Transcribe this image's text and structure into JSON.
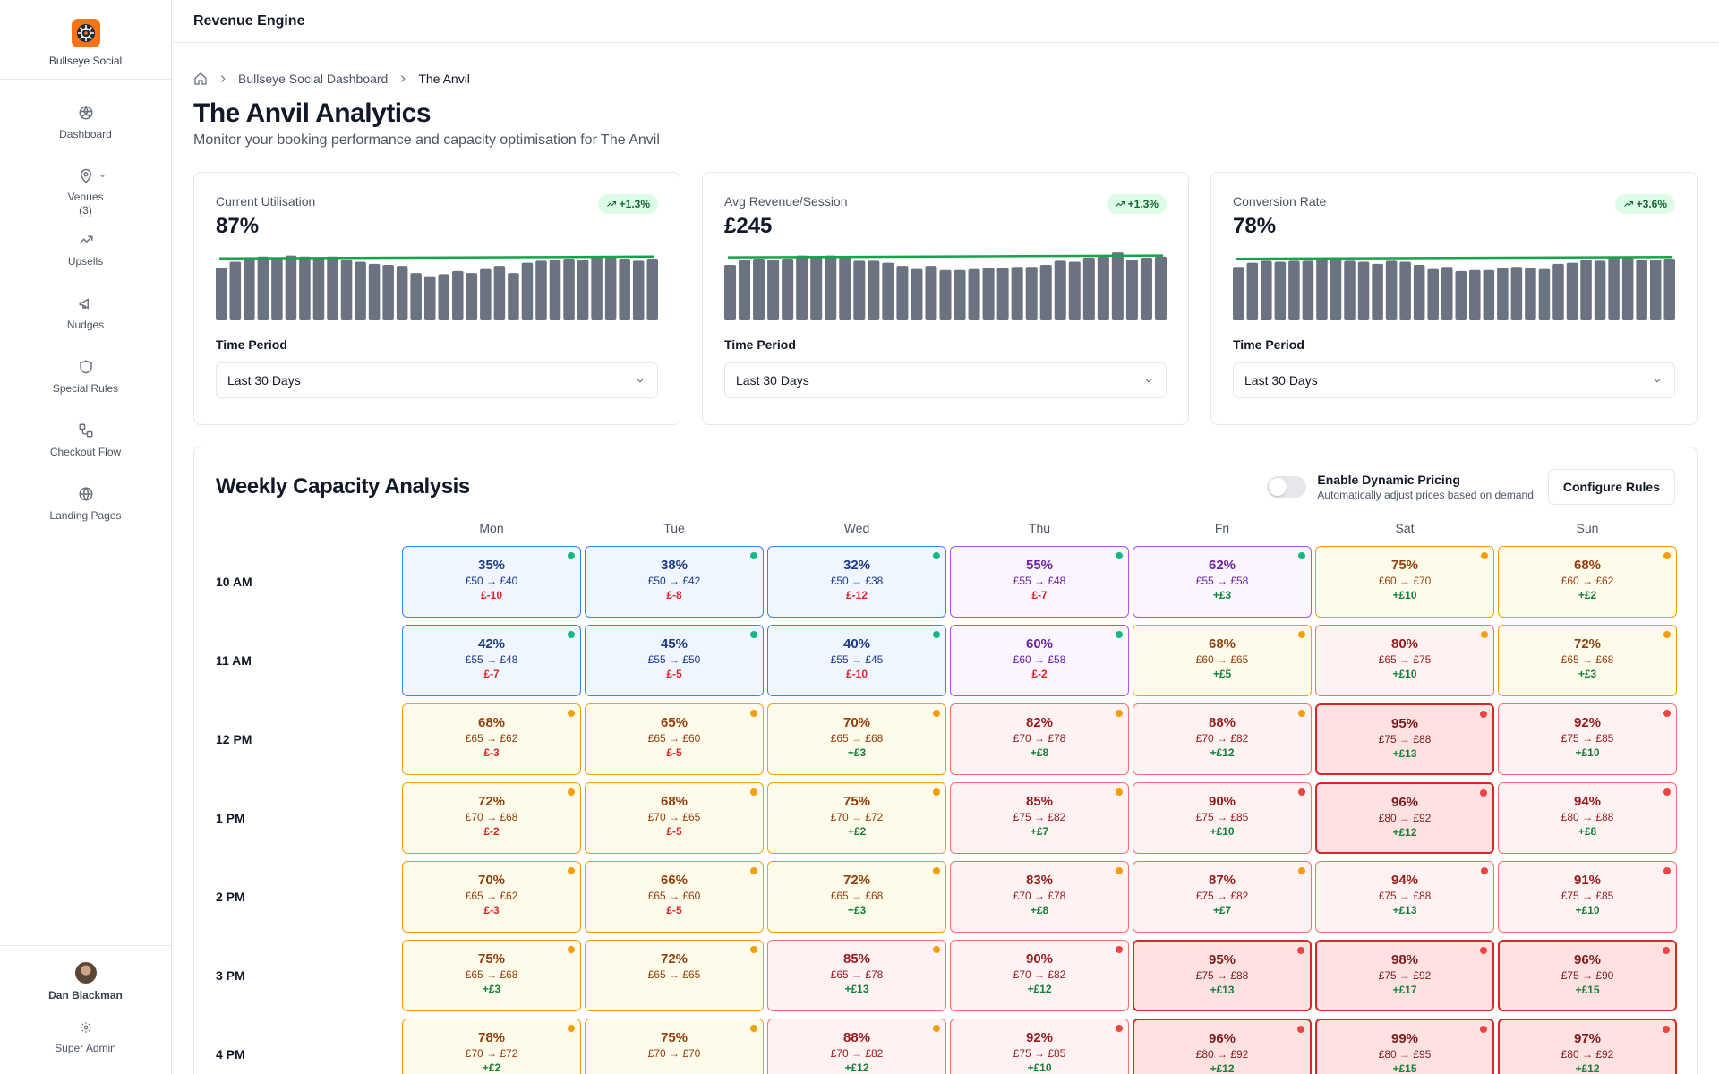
{
  "brand": {
    "name": "Bullseye Social",
    "logo_color": "#f97316"
  },
  "sidebar": {
    "items": [
      {
        "label": "Dashboard",
        "icon": "dashboard-icon"
      },
      {
        "label": "Venues",
        "sub": "(3)",
        "icon": "map-pin-icon"
      },
      {
        "label": "Upsells",
        "icon": "trending-up-icon"
      },
      {
        "label": "Nudges",
        "icon": "megaphone-icon"
      },
      {
        "label": "Special Rules",
        "icon": "shield-icon"
      },
      {
        "label": "Checkout Flow",
        "icon": "workflow-icon"
      },
      {
        "label": "Landing Pages",
        "icon": "globe-icon"
      }
    ],
    "user": {
      "name": "Dan Blackman",
      "role": "Super Admin"
    }
  },
  "topbar": {
    "title": "Revenue Engine"
  },
  "breadcrumb": {
    "home_icon": "home-icon",
    "parent": "Bullseye Social Dashboard",
    "current": "The Anvil"
  },
  "page": {
    "title": "The Anvil Analytics",
    "subtitle": "Monitor your booking performance and capacity optimisation for The Anvil"
  },
  "cards": [
    {
      "label": "Current Utilisation",
      "value": "87%",
      "badge": "+1.3%",
      "period_label": "Time Period",
      "period_value": "Last 30 Days",
      "bars": [
        50,
        56,
        60,
        61,
        60,
        62,
        61,
        60,
        61,
        58,
        56,
        54,
        53,
        52,
        45,
        42,
        44,
        47,
        45,
        49,
        52,
        45,
        55,
        57,
        58,
        59,
        58,
        61,
        60,
        59,
        57,
        59
      ]
    },
    {
      "label": "Avg Revenue/Session",
      "value": "£245",
      "badge": "+1.3%",
      "period_label": "Time Period",
      "period_value": "Last 30 Days",
      "bars": [
        53,
        58,
        59,
        58,
        59,
        62,
        61,
        62,
        60,
        57,
        57,
        55,
        52,
        49,
        52,
        48,
        48,
        49,
        50,
        50,
        51,
        51,
        53,
        57,
        56,
        60,
        61,
        65,
        58,
        60,
        61
      ]
    },
    {
      "label": "Conversion Rate",
      "value": "78%",
      "badge": "+3.6%",
      "period_label": "Time Period",
      "period_value": "Last 30 Days",
      "bars": [
        51,
        55,
        57,
        56,
        57,
        57,
        59,
        58,
        57,
        56,
        54,
        57,
        56,
        53,
        49,
        51,
        47,
        48,
        48,
        50,
        51,
        50,
        49,
        54,
        55,
        58,
        57,
        60,
        60,
        58,
        58,
        59
      ]
    }
  ],
  "spark_colors": {
    "bar": "#6b7280",
    "line": "#16a34a"
  },
  "weekly": {
    "title": "Weekly Capacity Analysis",
    "toggle_title": "Enable Dynamic Pricing",
    "toggle_desc": "Automatically adjust prices based on demand",
    "toggle_on": false,
    "configure_label": "Configure Rules",
    "days": [
      "Mon",
      "Tue",
      "Wed",
      "Thu",
      "Fri",
      "Sat",
      "Sun"
    ],
    "rows": [
      {
        "time": "10 AM",
        "cells": [
          {
            "pct": "35%",
            "price": "£50 → £40",
            "delta": "£-10",
            "level": "low",
            "dot": "green"
          },
          {
            "pct": "38%",
            "price": "£50 → £42",
            "delta": "£-8",
            "level": "low",
            "dot": "green"
          },
          {
            "pct": "32%",
            "price": "£50 → £38",
            "delta": "£-12",
            "level": "low",
            "dot": "green"
          },
          {
            "pct": "55%",
            "price": "£55 → £48",
            "delta": "£-7",
            "level": "mid",
            "dot": "green"
          },
          {
            "pct": "62%",
            "price": "£55 → £58",
            "delta": "+£3",
            "level": "mid",
            "dot": "green"
          },
          {
            "pct": "75%",
            "price": "£60 → £70",
            "delta": "+£10",
            "level": "high",
            "dot": "orange"
          },
          {
            "pct": "68%",
            "price": "£60 → £62",
            "delta": "+£2",
            "level": "high",
            "dot": "orange"
          }
        ]
      },
      {
        "time": "11 AM",
        "cells": [
          {
            "pct": "42%",
            "price": "£55 → £48",
            "delta": "£-7",
            "level": "low",
            "dot": "green"
          },
          {
            "pct": "45%",
            "price": "£55 → £50",
            "delta": "£-5",
            "level": "low",
            "dot": "green"
          },
          {
            "pct": "40%",
            "price": "£55 → £45",
            "delta": "£-10",
            "level": "low",
            "dot": "green"
          },
          {
            "pct": "60%",
            "price": "£60 → £58",
            "delta": "£-2",
            "level": "mid",
            "dot": "green"
          },
          {
            "pct": "68%",
            "price": "£60 → £65",
            "delta": "+£5",
            "level": "high",
            "dot": "orange"
          },
          {
            "pct": "80%",
            "price": "£65 → £75",
            "delta": "+£10",
            "level": "vhigh",
            "dot": "orange"
          },
          {
            "pct": "72%",
            "price": "£65 → £68",
            "delta": "+£3",
            "level": "high",
            "dot": "orange"
          }
        ]
      },
      {
        "time": "12 PM",
        "cells": [
          {
            "pct": "68%",
            "price": "£65 → £62",
            "delta": "£-3",
            "level": "high",
            "dot": "orange"
          },
          {
            "pct": "65%",
            "price": "£65 → £60",
            "delta": "£-5",
            "level": "high",
            "dot": "orange"
          },
          {
            "pct": "70%",
            "price": "£65 → £68",
            "delta": "+£3",
            "level": "high",
            "dot": "orange"
          },
          {
            "pct": "82%",
            "price": "£70 → £78",
            "delta": "+£8",
            "level": "vhigh",
            "dot": "orange"
          },
          {
            "pct": "88%",
            "price": "£70 → £82",
            "delta": "+£12",
            "level": "vhigh",
            "dot": "orange"
          },
          {
            "pct": "95%",
            "price": "£75 → £88",
            "delta": "+£13",
            "level": "peak",
            "dot": "red"
          },
          {
            "pct": "92%",
            "price": "£75 → £85",
            "delta": "+£10",
            "level": "vhigh",
            "dot": "red"
          }
        ]
      },
      {
        "time": "1 PM",
        "cells": [
          {
            "pct": "72%",
            "price": "£70 → £68",
            "delta": "£-2",
            "level": "high",
            "dot": "orange"
          },
          {
            "pct": "68%",
            "price": "£70 → £65",
            "delta": "£-5",
            "level": "high",
            "dot": "orange"
          },
          {
            "pct": "75%",
            "price": "£70 → £72",
            "delta": "+£2",
            "level": "high",
            "dot": "orange"
          },
          {
            "pct": "85%",
            "price": "£75 → £82",
            "delta": "+£7",
            "level": "vhigh",
            "dot": "orange"
          },
          {
            "pct": "90%",
            "price": "£75 → £85",
            "delta": "+£10",
            "level": "vhigh",
            "dot": "red"
          },
          {
            "pct": "96%",
            "price": "£80 → £92",
            "delta": "+£12",
            "level": "peak",
            "dot": "red"
          },
          {
            "pct": "94%",
            "price": "£80 → £88",
            "delta": "+£8",
            "level": "vhigh",
            "dot": "red"
          }
        ]
      },
      {
        "time": "2 PM",
        "cells": [
          {
            "pct": "70%",
            "price": "£65 → £62",
            "delta": "£-3",
            "level": "high",
            "dot": "orange"
          },
          {
            "pct": "66%",
            "price": "£65 → £60",
            "delta": "£-5",
            "level": "high",
            "dot": "orange"
          },
          {
            "pct": "72%",
            "price": "£65 → £68",
            "delta": "+£3",
            "level": "high",
            "dot": "orange"
          },
          {
            "pct": "83%",
            "price": "£70 → £78",
            "delta": "+£8",
            "level": "vhigh",
            "dot": "orange"
          },
          {
            "pct": "87%",
            "price": "£75 → £82",
            "delta": "+£7",
            "level": "vhigh",
            "dot": "orange"
          },
          {
            "pct": "94%",
            "price": "£75 → £88",
            "delta": "+£13",
            "level": "vhigh",
            "dot": "red"
          },
          {
            "pct": "91%",
            "price": "£75 → £85",
            "delta": "+£10",
            "level": "vhigh",
            "dot": "red"
          }
        ]
      },
      {
        "time": "3 PM",
        "cells": [
          {
            "pct": "75%",
            "price": "£65 → £68",
            "delta": "+£3",
            "level": "high",
            "dot": "orange"
          },
          {
            "pct": "72%",
            "price": "£65 → £65",
            "delta": "",
            "level": "high",
            "dot": "orange"
          },
          {
            "pct": "85%",
            "price": "£65 → £78",
            "delta": "+£13",
            "level": "vhigh",
            "dot": "orange"
          },
          {
            "pct": "90%",
            "price": "£70 → £82",
            "delta": "+£12",
            "level": "vhigh",
            "dot": "red"
          },
          {
            "pct": "95%",
            "price": "£75 → £88",
            "delta": "+£13",
            "level": "peak",
            "dot": "red"
          },
          {
            "pct": "98%",
            "price": "£75 → £92",
            "delta": "+£17",
            "level": "peak",
            "dot": "red"
          },
          {
            "pct": "96%",
            "price": "£75 → £90",
            "delta": "+£15",
            "level": "peak",
            "dot": "red"
          }
        ]
      },
      {
        "time": "4 PM",
        "cells": [
          {
            "pct": "78%",
            "price": "£70 → £72",
            "delta": "+£2",
            "level": "high",
            "dot": "orange"
          },
          {
            "pct": "75%",
            "price": "£70 → £70",
            "delta": "",
            "level": "high",
            "dot": "orange"
          },
          {
            "pct": "88%",
            "price": "£70 → £82",
            "delta": "+£12",
            "level": "vhigh",
            "dot": "orange"
          },
          {
            "pct": "92%",
            "price": "£75 → £85",
            "delta": "+£10",
            "level": "vhigh",
            "dot": "red"
          },
          {
            "pct": "96%",
            "price": "£80 → £92",
            "delta": "+£12",
            "level": "peak",
            "dot": "red"
          },
          {
            "pct": "99%",
            "price": "£80 → £95",
            "delta": "+£15",
            "level": "peak",
            "dot": "red"
          },
          {
            "pct": "97%",
            "price": "£80 → £92",
            "delta": "+£12",
            "level": "peak",
            "dot": "red"
          }
        ]
      }
    ]
  }
}
